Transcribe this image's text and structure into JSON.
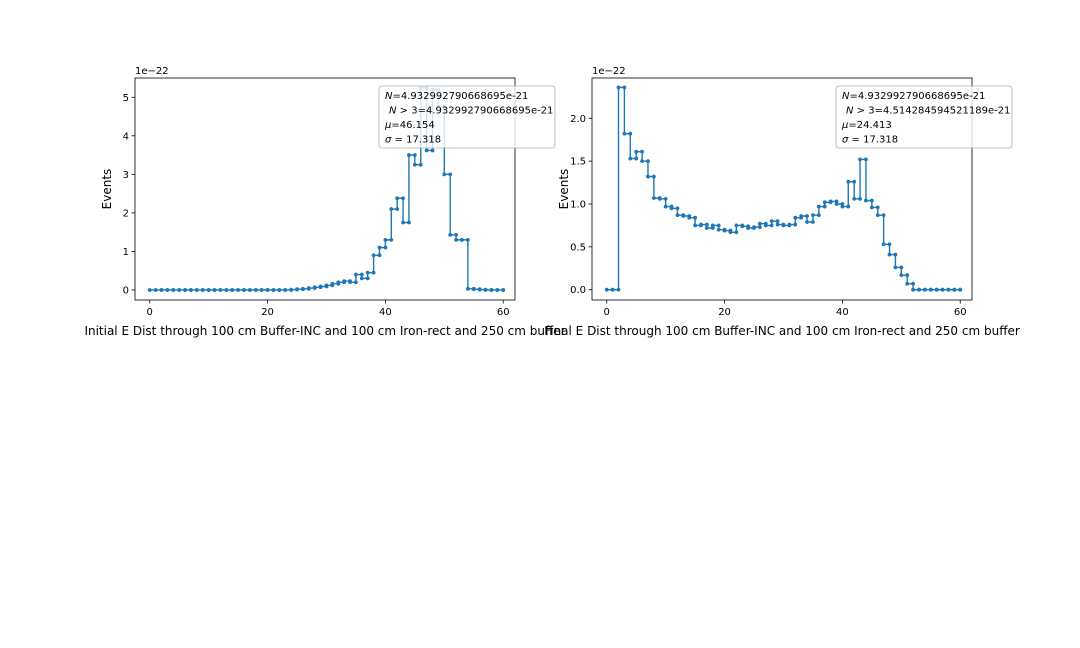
{
  "chart_data": [
    {
      "type": "line",
      "title": "",
      "xlabel": "Initial E Dist through 100 cm Buffer-INC and 100 cm Iron-rect and 250 cm buffer",
      "ylabel": "Events",
      "offset_text": "1e−22",
      "xlim": [
        -2.5,
        62
      ],
      "ylim": [
        -0.26,
        5.5
      ],
      "xticks": [
        0,
        20,
        40,
        60
      ],
      "xtick_labels": [
        "0",
        "20",
        "40",
        "60"
      ],
      "yticks": [
        0,
        1,
        2,
        3,
        4,
        5
      ],
      "ytick_labels": [
        "0",
        "1",
        "2",
        "3",
        "4",
        "5"
      ],
      "grid": false,
      "stats_box": {
        "placement": "top-right",
        "lines": [
          {
            "italic": "N",
            "text": "=4.932992790668695e-21"
          },
          {
            "italic": "N",
            "text": " > 3=4.932992790668695e-21"
          },
          {
            "italic": "μ",
            "text": "=46.154"
          },
          {
            "italic": "σ",
            "text": " = 17.318"
          }
        ]
      },
      "series": [
        {
          "color": "#1f77b4",
          "x": [
            0,
            1,
            2,
            3,
            4,
            5,
            6,
            7,
            8,
            9,
            10,
            11,
            12,
            13,
            14,
            15,
            16,
            17,
            18,
            19,
            20,
            21,
            22,
            23,
            24,
            25,
            26,
            27,
            28,
            29,
            30,
            31,
            32,
            33,
            34,
            35,
            36,
            37,
            38,
            39,
            40,
            41,
            42,
            43,
            44,
            45,
            46,
            47,
            48,
            49,
            50,
            51,
            52,
            53,
            54,
            55,
            56,
            57,
            58,
            59,
            60
          ],
          "y": [
            0,
            0,
            0,
            0,
            0,
            0,
            0,
            0,
            0,
            0,
            0,
            0,
            0,
            0,
            0,
            0,
            0,
            0,
            0,
            0,
            0,
            0,
            0,
            0,
            0.01,
            0.02,
            0.03,
            0.05,
            0.07,
            0.09,
            0.12,
            0.16,
            0.2,
            0.23,
            0.2,
            0.4,
            0.3,
            0.45,
            0.9,
            1.1,
            1.3,
            2.1,
            2.38,
            1.75,
            3.5,
            3.25,
            5.25,
            3.62,
            5.2,
            4.75,
            3.0,
            1.43,
            1.3,
            1.3,
            0.03,
            0.02,
            0.01,
            0.0,
            0.0,
            0.0,
            0.0
          ]
        }
      ]
    },
    {
      "type": "line",
      "title": "",
      "xlabel": "Final E Dist through 100 cm Buffer-INC and 100 cm Iron-rect and 250 cm buffer",
      "ylabel": "Events",
      "offset_text": "1e−22",
      "xlim": [
        -2.5,
        62
      ],
      "ylim": [
        -0.12,
        2.47
      ],
      "xticks": [
        0,
        20,
        40,
        60
      ],
      "xtick_labels": [
        "0",
        "20",
        "40",
        "60"
      ],
      "yticks": [
        0.0,
        0.5,
        1.0,
        1.5,
        2.0
      ],
      "ytick_labels": [
        "0.0",
        "0.5",
        "1.0",
        "1.5",
        "2.0"
      ],
      "grid": false,
      "stats_box": {
        "placement": "top-right",
        "lines": [
          {
            "italic": "N",
            "text": "=4.932992790668695e-21"
          },
          {
            "italic": "N",
            "text": " > 3=4.514284594521189e-21"
          },
          {
            "italic": "μ",
            "text": "=24.413"
          },
          {
            "italic": "σ",
            "text": " = 17.318"
          }
        ]
      },
      "series": [
        {
          "color": "#1f77b4",
          "x": [
            0,
            1,
            2,
            3,
            4,
            5,
            6,
            7,
            8,
            9,
            10,
            11,
            12,
            13,
            14,
            15,
            16,
            17,
            18,
            19,
            20,
            21,
            22,
            23,
            24,
            25,
            26,
            27,
            28,
            29,
            30,
            31,
            32,
            33,
            34,
            35,
            36,
            37,
            38,
            39,
            40,
            41,
            42,
            43,
            44,
            45,
            46,
            47,
            48,
            49,
            50,
            51,
            52,
            53,
            54,
            55,
            56,
            57,
            58,
            59,
            60
          ],
          "y": [
            0,
            0,
            2.36,
            1.82,
            1.53,
            1.61,
            1.5,
            1.32,
            1.07,
            1.06,
            0.97,
            0.95,
            0.87,
            0.86,
            0.84,
            0.75,
            0.76,
            0.72,
            0.75,
            0.7,
            0.69,
            0.67,
            0.75,
            0.74,
            0.72,
            0.73,
            0.77,
            0.75,
            0.8,
            0.76,
            0.75,
            0.76,
            0.84,
            0.86,
            0.79,
            0.87,
            0.97,
            1.02,
            1.03,
            1.0,
            0.97,
            1.26,
            1.06,
            1.52,
            1.04,
            0.96,
            0.87,
            0.53,
            0.41,
            0.26,
            0.17,
            0.07,
            0.0,
            0.0,
            0.0,
            0.0,
            0.0,
            0.0,
            0.0,
            0.0,
            0.0
          ]
        }
      ]
    }
  ]
}
